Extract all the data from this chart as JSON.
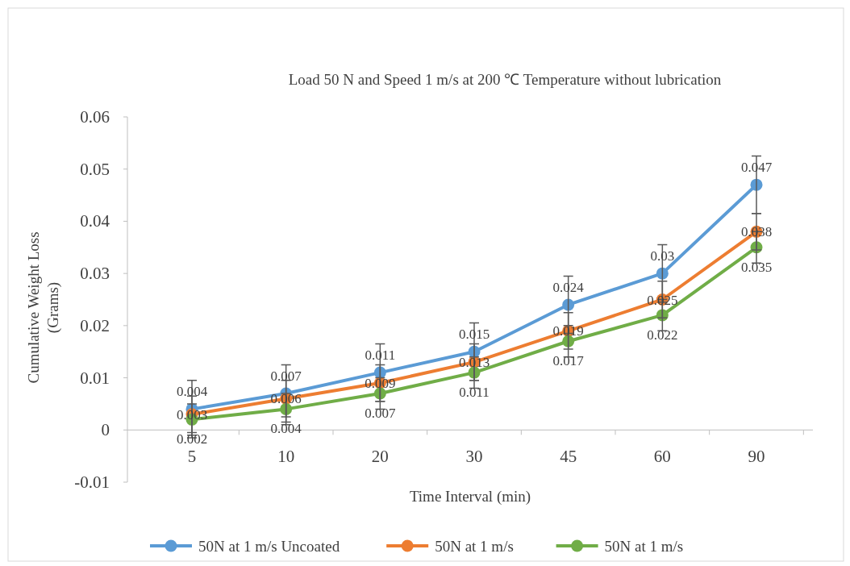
{
  "chart_data": {
    "type": "line",
    "title": "Load 50 N and Speed 1 m/s at 200 ℃ Temperature without lubrication",
    "xlabel": "Time Interval (min)",
    "ylabel": "Cumulative Weight Loss (Grams)",
    "categories": [
      "5",
      "10",
      "20",
      "30",
      "45",
      "60",
      "90"
    ],
    "series": [
      {
        "name": "50N at 1 m/s Uncoated",
        "color": "#5b9bd5",
        "values": [
          0.004,
          0.007,
          0.011,
          0.015,
          0.024,
          0.03,
          0.047
        ],
        "errors": [
          0.0055,
          0.0055,
          0.0055,
          0.0055,
          0.0055,
          0.0055,
          0.0055
        ]
      },
      {
        "name": "50N at 1 m/s",
        "color": "#ed7d31",
        "values": [
          0.003,
          0.006,
          0.009,
          0.013,
          0.019,
          0.025,
          0.038
        ],
        "errors": [
          0.0035,
          0.0035,
          0.0035,
          0.0035,
          0.0035,
          0.0035,
          0.0035
        ]
      },
      {
        "name": "50N at 1 m/s",
        "color": "#70ad47",
        "values": [
          0.002,
          0.004,
          0.007,
          0.011,
          0.017,
          0.022,
          0.035
        ],
        "errors": [
          0.003,
          0.003,
          0.003,
          0.003,
          0.003,
          0.003,
          0.003
        ]
      }
    ],
    "ylim": [
      -0.01,
      0.06
    ],
    "yticks": [
      -0.01,
      0,
      0.01,
      0.02,
      0.03,
      0.04,
      0.05,
      0.06
    ],
    "marker": "circle",
    "data_labels": true,
    "legend": "bottom",
    "grid": false
  }
}
